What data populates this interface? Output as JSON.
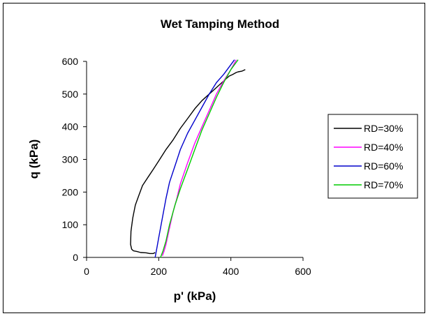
{
  "chart_data": {
    "type": "line",
    "title": "Wet Tamping Method",
    "xlabel": "p' (kPa)",
    "ylabel": "q (kPa)",
    "xlim": [
      0,
      600
    ],
    "ylim": [
      0,
      600
    ],
    "xticks": [
      "0",
      "200",
      "400",
      "600"
    ],
    "yticks": [
      "0",
      "100",
      "200",
      "300",
      "400",
      "500",
      "600"
    ],
    "grid": false,
    "legend_position": "right",
    "series": [
      {
        "name": "RD=30%",
        "color": "#000000",
        "x": [
          440,
          430,
          420,
          415,
          405,
          395,
          380,
          360,
          340,
          320,
          300,
          280,
          260,
          240,
          220,
          200,
          185,
          170,
          155,
          145,
          135,
          128,
          123,
          122,
          125,
          130,
          140,
          150,
          165,
          175,
          185,
          190
        ],
        "y": [
          575,
          570,
          568,
          566,
          560,
          555,
          540,
          520,
          500,
          480,
          455,
          425,
          395,
          360,
          330,
          295,
          270,
          245,
          220,
          190,
          160,
          120,
          80,
          40,
          25,
          20,
          18,
          15,
          14,
          12,
          12,
          15
        ]
      },
      {
        "name": "RD=40%",
        "color": "#ff00ff",
        "x": [
          210,
          215,
          220,
          230,
          240,
          250,
          260,
          280,
          300,
          320,
          340,
          360,
          380,
          400,
          415
        ],
        "y": [
          5,
          20,
          40,
          90,
          140,
          180,
          225,
          290,
          350,
          400,
          450,
          500,
          540,
          575,
          605
        ]
      },
      {
        "name": "RD=60%",
        "color": "#0000cc",
        "x": [
          190,
          195,
          200,
          210,
          220,
          230,
          245,
          260,
          280,
          300,
          320,
          340,
          360,
          380,
          400,
          410
        ],
        "y": [
          0,
          30,
          60,
          120,
          180,
          230,
          280,
          330,
          380,
          420,
          460,
          500,
          535,
          560,
          590,
          605
        ]
      },
      {
        "name": "RD=70%",
        "color": "#00cc00",
        "x": [
          205,
          212,
          220,
          230,
          245,
          260,
          280,
          300,
          320,
          340,
          360,
          380,
          400,
          420
        ],
        "y": [
          0,
          20,
          50,
          100,
          160,
          210,
          270,
          330,
          390,
          440,
          490,
          535,
          575,
          605
        ]
      }
    ]
  }
}
